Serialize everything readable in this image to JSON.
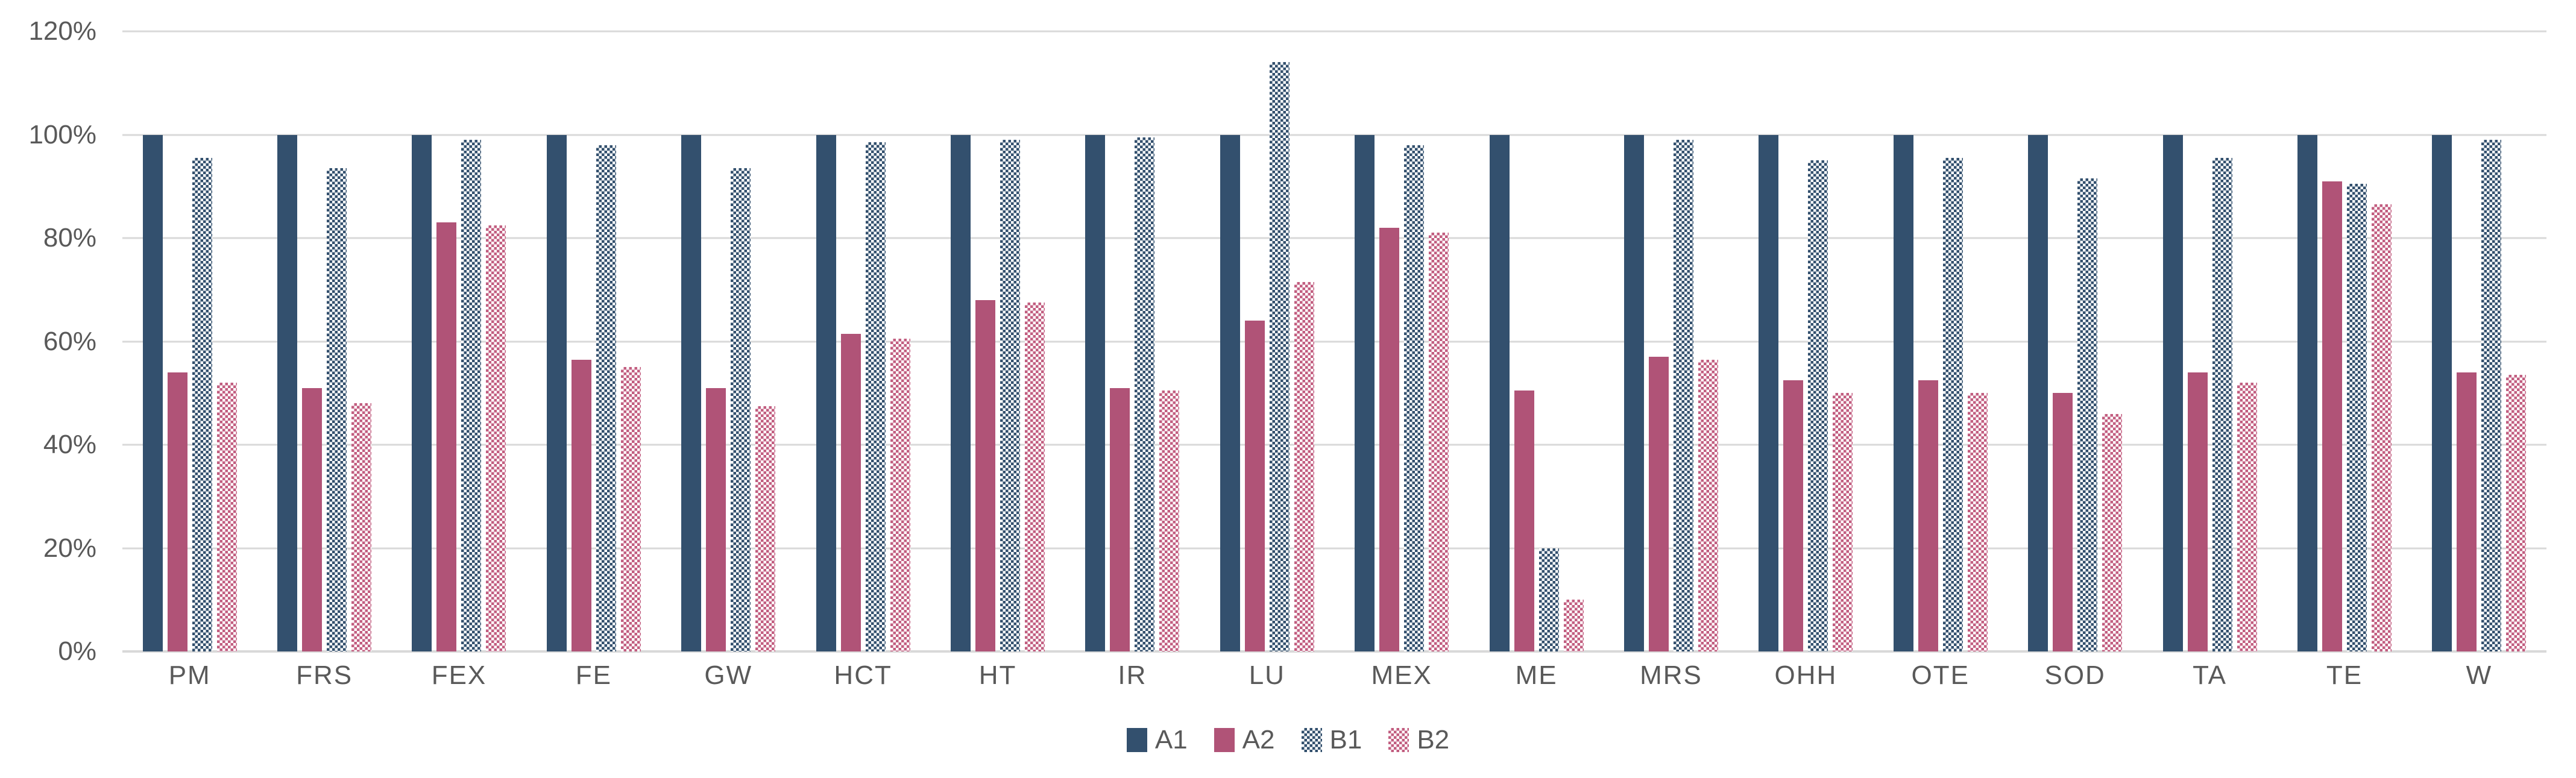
{
  "chart_data": {
    "type": "bar",
    "title": "",
    "categories": [
      "PM",
      "FRS",
      "FEX",
      "FE",
      "GW",
      "HCT",
      "HT",
      "IR",
      "LU",
      "MEX",
      "ME",
      "MRS",
      "OHH",
      "OTE",
      "SOD",
      "TA",
      "TE",
      "W"
    ],
    "series": [
      {
        "name": "A1",
        "fill": "solid",
        "color": "#33506E",
        "values": [
          100,
          100,
          100,
          100,
          100,
          100,
          100,
          100,
          100,
          100,
          100,
          100,
          100,
          100,
          100,
          100,
          100,
          100
        ]
      },
      {
        "name": "A2",
        "fill": "solid",
        "color": "#B05377",
        "values": [
          54,
          51,
          83,
          56.5,
          51,
          61.5,
          68,
          51,
          64,
          82,
          50.5,
          57,
          52.5,
          52.5,
          50,
          54,
          91,
          54
        ]
      },
      {
        "name": "B1",
        "fill": "checker",
        "color": "#33506E",
        "values": [
          95.5,
          93.5,
          99,
          98,
          93.5,
          98.5,
          99,
          99.5,
          114,
          98,
          20,
          99,
          95,
          95.5,
          91.5,
          95.5,
          90.5,
          99
        ]
      },
      {
        "name": "B2",
        "fill": "checker",
        "color": "#C25E80",
        "values": [
          52,
          48,
          82.5,
          55,
          47.5,
          60.5,
          67.5,
          50.5,
          71.5,
          81,
          10,
          56.5,
          50,
          50,
          46,
          52,
          86.5,
          53.5
        ]
      }
    ],
    "xlabel": "",
    "ylabel": "",
    "ylim": [
      0,
      120
    ],
    "ytick_labels": [
      "0%",
      "20%",
      "40%",
      "60%",
      "80%",
      "100%",
      "120%"
    ],
    "ytick_values": [
      0,
      20,
      40,
      60,
      80,
      100,
      120
    ],
    "grid": true,
    "legend_position": "bottom-center",
    "legend_labels": [
      "A1",
      "A2",
      "B1",
      "B2"
    ]
  },
  "colors": {
    "background": "#ffffff",
    "gridline": "#d9d9d9",
    "axis_line": "#d9d9d9",
    "tick_text": "#595959",
    "series_a1": "#33506E",
    "series_a2": "#B05377",
    "series_b1": "#33506E",
    "series_b2": "#C25E80"
  }
}
